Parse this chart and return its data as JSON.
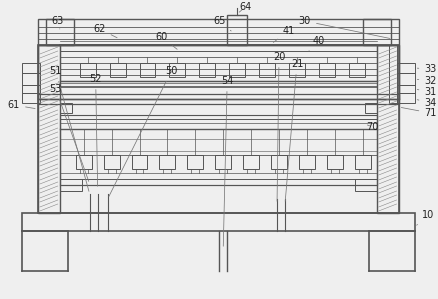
{
  "fig_width": 4.38,
  "fig_height": 2.99,
  "dpi": 100,
  "bg_color": "#efefef",
  "lc": "#666666",
  "lc2": "#888888",
  "label_color": "#222222",
  "xlim": [
    0,
    438
  ],
  "ylim": [
    0,
    299
  ]
}
